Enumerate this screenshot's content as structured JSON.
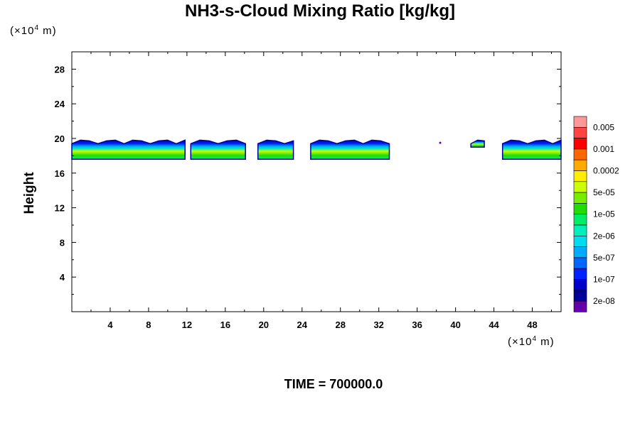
{
  "chart_data": {
    "type": "heatmap",
    "title": "NH3-s-Cloud Mixing Ratio [kg/kg]",
    "ylabel": "Height",
    "xlabel": "",
    "x_unit": "(×10⁴ m)",
    "y_unit": "(×10⁴ m)",
    "footer": "TIME = 700000.0",
    "xlim": [
      0,
      51
    ],
    "ylim": [
      0,
      30
    ],
    "xticks": [
      "4",
      "8",
      "12",
      "16",
      "20",
      "24",
      "28",
      "32",
      "36",
      "40",
      "44",
      "48"
    ],
    "yticks": [
      "4",
      "8",
      "12",
      "16",
      "20",
      "24",
      "28"
    ],
    "colorbar": {
      "labels": [
        "0.005",
        "0.001",
        "0.0002",
        "5e-05",
        "1e-05",
        "2e-06",
        "5e-07",
        "1e-07",
        "2e-08"
      ],
      "colors": [
        "#ff9999",
        "#ff4444",
        "#ff0000",
        "#ff6600",
        "#ffaa00",
        "#ffee00",
        "#ccff00",
        "#77ee00",
        "#22dd00",
        "#00ee66",
        "#00eebb",
        "#00ddee",
        "#00aaff",
        "#0066ff",
        "#0022ff",
        "#0000cc",
        "#000099",
        "#6600aa"
      ]
    },
    "cloud_segments": [
      {
        "x_start": 0.0,
        "x_end": 11.8,
        "base": 17.6,
        "top": 19.8
      },
      {
        "x_start": 12.4,
        "x_end": 18.1,
        "base": 17.6,
        "top": 19.8
      },
      {
        "x_start": 19.4,
        "x_end": 23.1,
        "base": 17.6,
        "top": 19.8
      },
      {
        "x_start": 24.9,
        "x_end": 33.1,
        "base": 17.6,
        "top": 19.8
      },
      {
        "x_start": 41.6,
        "x_end": 43.0,
        "base": 19.0,
        "top": 19.8
      },
      {
        "x_start": 44.9,
        "x_end": 51.0,
        "base": 17.6,
        "top": 19.8
      }
    ],
    "isolated_points": [
      {
        "x": 38.4,
        "y": 19.5
      }
    ]
  }
}
